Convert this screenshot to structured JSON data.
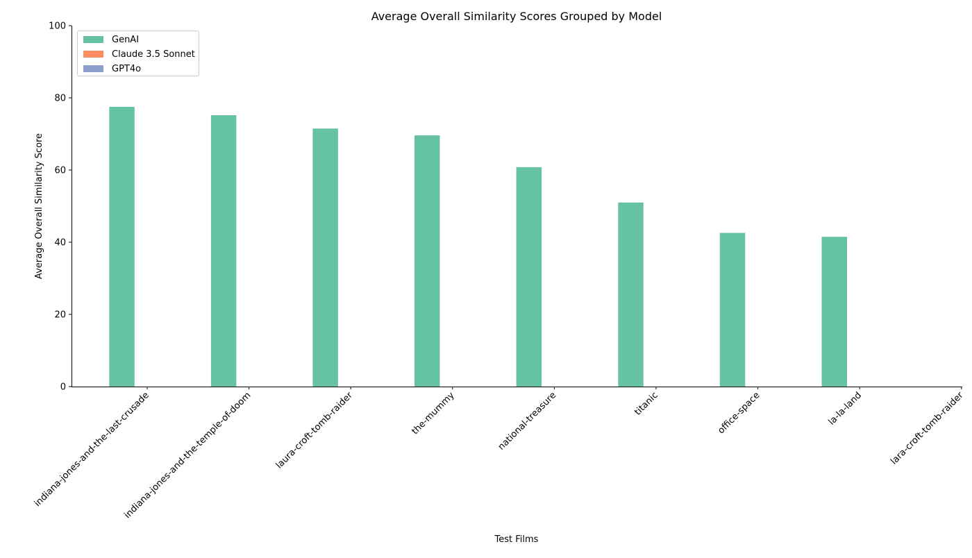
{
  "chart_data": {
    "type": "bar",
    "title": "Average Overall Similarity Scores Grouped by Model",
    "xlabel": "Test Films",
    "ylabel": "Average Overall Similarity Score",
    "ylim": [
      0,
      100
    ],
    "yticks": [
      "0",
      "20",
      "40",
      "60",
      "80",
      "100"
    ],
    "categories": [
      "indiana-jones-and-the-last-crusade",
      "indiana-jones-and-the-temple-of-doom",
      "laura-croft-tomb-raider",
      "the-mummy",
      "national-treasure",
      "titanic",
      "office-space",
      "la-la-land",
      "lara-croft-tomb-raider"
    ],
    "series": [
      {
        "name": "GenAI",
        "color": "#66c2a5",
        "values": [
          77.5,
          75.2,
          71.5,
          69.6,
          60.8,
          51.0,
          42.6,
          41.5,
          0
        ]
      },
      {
        "name": "Claude 3.5 Sonnet",
        "color": "#fc8d62",
        "values": [
          0,
          0,
          0,
          0,
          0,
          0,
          0,
          0,
          0
        ]
      },
      {
        "name": "GPT4o",
        "color": "#8da0cb",
        "values": [
          0,
          0,
          0,
          0,
          0,
          0,
          0,
          0,
          0
        ]
      }
    ],
    "legend_position": "top-left",
    "grid": false
  }
}
